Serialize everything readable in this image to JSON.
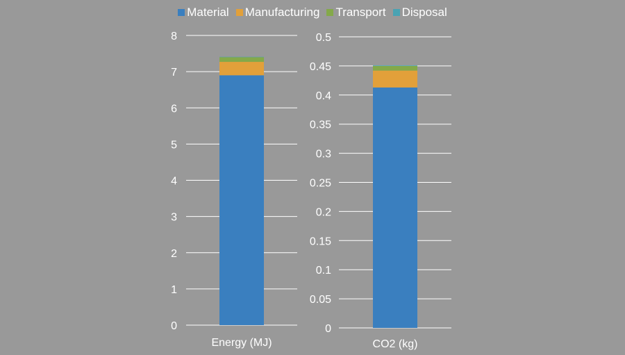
{
  "chart_data": {
    "type": "bar",
    "stacked": true,
    "legend_position": "top",
    "grid": true,
    "series_meta": [
      {
        "name": "Material",
        "color": "#3a7fbf"
      },
      {
        "name": "Manufacturing",
        "color": "#e2a03a"
      },
      {
        "name": "Transport",
        "color": "#84a94a"
      },
      {
        "name": "Disposal",
        "color": "#4aa3b3"
      }
    ],
    "charts": [
      {
        "categories": [
          "Energy (MJ)"
        ],
        "ylim": [
          0,
          8
        ],
        "yticks": [
          "0",
          "1",
          "2",
          "3",
          "4",
          "5",
          "6",
          "7",
          "8"
        ],
        "series": [
          {
            "name": "Material",
            "values": [
              6.9
            ]
          },
          {
            "name": "Manufacturing",
            "values": [
              0.37
            ]
          },
          {
            "name": "Transport",
            "values": [
              0.13
            ]
          },
          {
            "name": "Disposal",
            "values": [
              0.01
            ]
          }
        ]
      },
      {
        "categories": [
          "CO2 (kg)"
        ],
        "ylim": [
          0,
          0.5
        ],
        "yticks": [
          "0",
          "0.05",
          "0.1",
          "0.15",
          "0.2",
          "0.25",
          "0.3",
          "0.35",
          "0.4",
          "0.45",
          "0.5"
        ],
        "series": [
          {
            "name": "Material",
            "values": [
              0.413
            ]
          },
          {
            "name": "Manufacturing",
            "values": [
              0.029
            ]
          },
          {
            "name": "Transport",
            "values": [
              0.008
            ]
          },
          {
            "name": "Disposal",
            "values": [
              0.001
            ]
          }
        ]
      }
    ]
  }
}
